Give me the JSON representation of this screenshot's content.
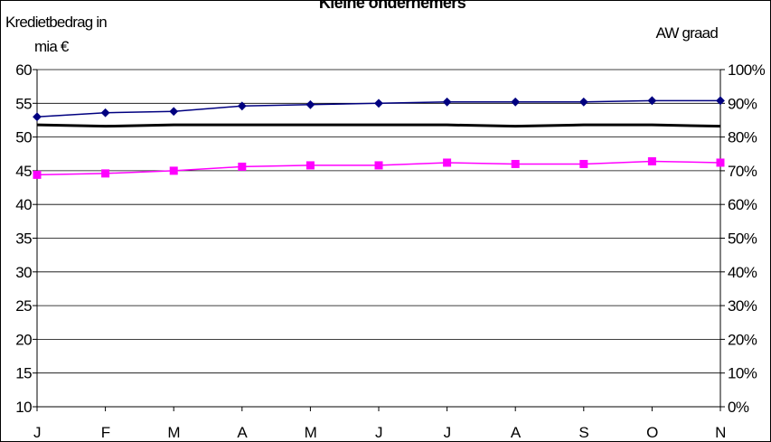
{
  "chart_data": {
    "type": "line",
    "title": "Kleine ondernemers",
    "ylabel_left_line1": "Kredietbedrag in",
    "ylabel_left_line2": "mia €",
    "ylabel_right": "AW graad",
    "categories": [
      "J",
      "F",
      "M",
      "A",
      "M",
      "J",
      "J",
      "A",
      "S",
      "O",
      "N"
    ],
    "ylim_left": [
      10,
      60
    ],
    "yticks_left": [
      "10",
      "15",
      "20",
      "25",
      "30",
      "35",
      "40",
      "45",
      "50",
      "55",
      "60"
    ],
    "ylim_right": [
      0,
      100
    ],
    "yticks_right": [
      "0%",
      "10%",
      "20%",
      "30%",
      "40%",
      "50%",
      "60%",
      "70%",
      "80%",
      "90%",
      "100%"
    ],
    "grid": true,
    "series": [
      {
        "axis": "left",
        "color": "#000080",
        "marker": "diamond",
        "values": [
          53.0,
          53.6,
          53.8,
          54.6,
          54.8,
          55.0,
          55.2,
          55.2,
          55.2,
          55.4,
          55.4
        ]
      },
      {
        "axis": "right",
        "color": "#000000",
        "marker": "none",
        "values": [
          83.6,
          83.2,
          83.6,
          83.6,
          83.6,
          83.6,
          83.6,
          83.2,
          83.6,
          83.6,
          83.2
        ]
      },
      {
        "axis": "left",
        "color": "#FF00FF",
        "marker": "square",
        "values": [
          44.4,
          44.6,
          45.0,
          45.6,
          45.8,
          45.8,
          46.2,
          46.0,
          46.0,
          46.4,
          46.2
        ]
      }
    ]
  }
}
